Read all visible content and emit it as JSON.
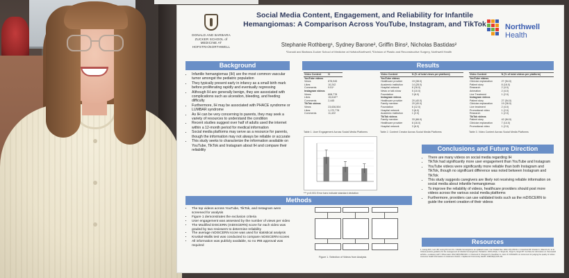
{
  "poster": {
    "title": "Social Media Content, Engagement, and Reliability for Infantile Hemangiomas: A Comparison Across YouTube, Instagram, and TikTok",
    "authors": "Stephanie Rothberg¹, Sydney Barone², Griffin Bins², Nicholas Bastidas²",
    "affiliations": "¹Donald and Barbara Zucker School of Medicine at Hofstra/Northwell, ²Division of Plastic and Reconstructive Surgery, Northwell Health",
    "logo_left_text": "DONALD AND BARBARA ZUCKER SCHOOL of MEDICINE AT HOFSTRA/NORTHWELL",
    "logo_right_name": "Northwell",
    "logo_right_sub": "Health",
    "brand_colors": [
      "#e63a2e",
      "#f29b1d",
      "#3b5db0",
      "#6cb44a"
    ],
    "sections": {
      "background": {
        "heading": "Background",
        "bullets": [
          "Infantile hemangiomas (IH) are the most common vascular tumor amongst the pediatric population",
          "They typically present early in infancy as a small birth mark before proliferating rapidly and eventually regressing",
          "Although IH are generally benign, they are associated with complications such as ulceration, bleeding, and feeding difficulty",
          "Furthermore, IH may be associated with PHACE syndrome or LUMBAR syndrome",
          "As IH can be very concerning to parents, they may seek a variety of resources to understand the condition",
          "Recent studies suggest over half of adults used the internet within a 12-month period for medical information",
          "Social media platforms may serve as a resource for parents, though the information may not always be reliable or accurate",
          "This study seeks to characterize the information available on YouTube, TikTok and Instagram about IH and compare their reliability"
        ]
      },
      "methods": {
        "heading": "Methods",
        "bullets": [
          "The top videos across YouTube, TikTok, and Instagram were screened for analysis",
          "Figure 1 demonstrates the exclusion criteria",
          "User engagement was assessed by the number of views per video",
          "The Modified DISCERN (mDISCERN) score for each video was graded by two reviewers to determine reliability",
          "The average mDISCERN score was used for statistical analysis",
          "Kruskal-Wallis test was conducted to compare mDISCERN scores",
          "All information was publicly available, so no IRB approval was required"
        ],
        "figure_caption": "Figure 1. Selection of Videos from Analysis"
      },
      "results": {
        "heading": "Results",
        "table1": {
          "headers": [
            "Video Content",
            "N"
          ],
          "rows": [
            [
              "YouTube videos",
              ""
            ],
            [
              "Views",
              "878,945"
            ],
            [
              "Likes",
              "10,242"
            ],
            [
              "Comments",
              "9.51*"
            ],
            [
              "Instagram videos",
              ""
            ],
            [
              "Views",
              "808,778"
            ],
            [
              "Likes",
              "15,616**"
            ],
            [
              "Comments",
              "2,445"
            ],
            [
              "TikTok videos",
              ""
            ],
            [
              "Views",
              "23,636,504"
            ],
            [
              "Likes",
              "1,172,778"
            ],
            [
              "Comments",
              "11,422"
            ]
          ],
          "caption": "Table 1. User Engagement Across Social Media Platforms"
        },
        "table2": {
          "headers": [
            "Video Content",
            "N (% of total views per platform)"
          ],
          "rows": [
            [
              "YouTube videos",
              ""
            ],
            [
              "Healthcare provider",
              "19 (38.0)"
            ],
            [
              "Academic institution",
              "14 (28.0)"
            ],
            [
              "Hospital network",
              "8 (16.0)"
            ],
            [
              "News or talk show",
              "5 (10.0)"
            ],
            [
              "Foundation",
              "3 (6.0)"
            ],
            [
              "Instagram videos",
              ""
            ],
            [
              "Healthcare provider",
              "20 (40.0)"
            ],
            [
              "Family member",
              "20 (40.0)"
            ],
            [
              "Foundation",
              "6 (12.0)"
            ],
            [
              "Hospital network",
              "3 (6.0)"
            ],
            [
              "Academic institution",
              "1 (2.0)"
            ],
            [
              "TikTok videos",
              ""
            ],
            [
              "Family member",
              "33 (66.0)"
            ],
            [
              "Healthcare provider",
              "8 (16.0)"
            ],
            [
              "Hospital network",
              "3 (6.0)"
            ]
          ],
          "caption": "Table 2. Content Creator Across Social Media Platforms"
        },
        "table3": {
          "headers": [
            "Video Content",
            "N (% of total videos per platform)"
          ],
          "rows": [
            [
              "YouTube videos",
              ""
            ],
            [
              "Clinician explanation",
              "27 (54.0)"
            ],
            [
              "Patient story",
              "8 (16.0)"
            ],
            [
              "Research",
              "2 (4.0)"
            ],
            [
              "Animation",
              "2 (4.0)"
            ],
            [
              "Live Treatment",
              "1 (2.0)"
            ],
            [
              "Instagram videos",
              ""
            ],
            [
              "Patient story",
              "27 (54.0)"
            ],
            [
              "Clinician explanation",
              "19 (38.0)"
            ],
            [
              "Live treatment",
              "2 (4.0)"
            ],
            [
              "Promotional video",
              "1 (2.0)"
            ],
            [
              "Research",
              "1 (2.0)"
            ],
            [
              "TikTok videos",
              ""
            ],
            [
              "Patient story",
              "42 (84.0)"
            ],
            [
              "Clinician explanation",
              "7 (14.0)"
            ],
            [
              "Promotional video",
              "1 (2.0)"
            ]
          ],
          "caption": "Table 3. Video Content Across Social Media Platforms"
        },
        "chart_caption": "Table 4. Average Modified DISCERN Score Across Social Media Platforms",
        "chart_note": "*** p<0.001 Error bars indicate standard deviation"
      },
      "conclusions": {
        "heading": "Conclusions and Future Direction",
        "bullets": [
          "There are many videos on social media regarding IH",
          "TikTok had significantly more user engagement than YouTube and Instagram",
          "YouTube videos were significantly more reliable than both Instagram and TikTok, though no significant difference was noted between Instagram and TikTok",
          "This study suggests caregivers are likely not receiving reliable information on social media about infantile hemangiomas",
          "To improve the reliability of videos, healthcare providers should post more videos across the various social media platforms",
          "Furthermore, providers can use validated tools such as the mDISCERN to guide the content creation of their videos"
        ]
      },
      "resources": {
        "heading": "Resources",
        "text": "1. Leung AKC, Lam JM, Leong KF, Hon KL. Infantile hemangioma: an updated review. Curr Pediatr Rev. 2021;17(1):55-69. 2. Krowchuk DP, Frieden IJ, Mancini AJ, et al. Clinical practice guideline for the management of infantile hemangiomas. Pediatrics. 2019;143(1). 3. Singh AG, Singh S, Singh PP. YouTube for information on rheumatoid arthritis—a wakeup call? J Rheumatol. 2012;39(5):899-903. 4. Charnock D, Shepperd S, Needham G, Gann R. DISCERN: an instrument for judging the quality of written consumer health information on treatment choices. J Epidemiol Community Health. 1999;53(2):105-111."
      }
    }
  },
  "chart_data": {
    "type": "bar",
    "categories": [
      "",
      "",
      ""
    ],
    "values": [
      3.2,
      1.9,
      1.7
    ],
    "errors": [
      0.9,
      0.7,
      0.6
    ],
    "ylim": [
      0,
      5
    ],
    "grid": true,
    "bar_color": "#7f7f7f"
  }
}
